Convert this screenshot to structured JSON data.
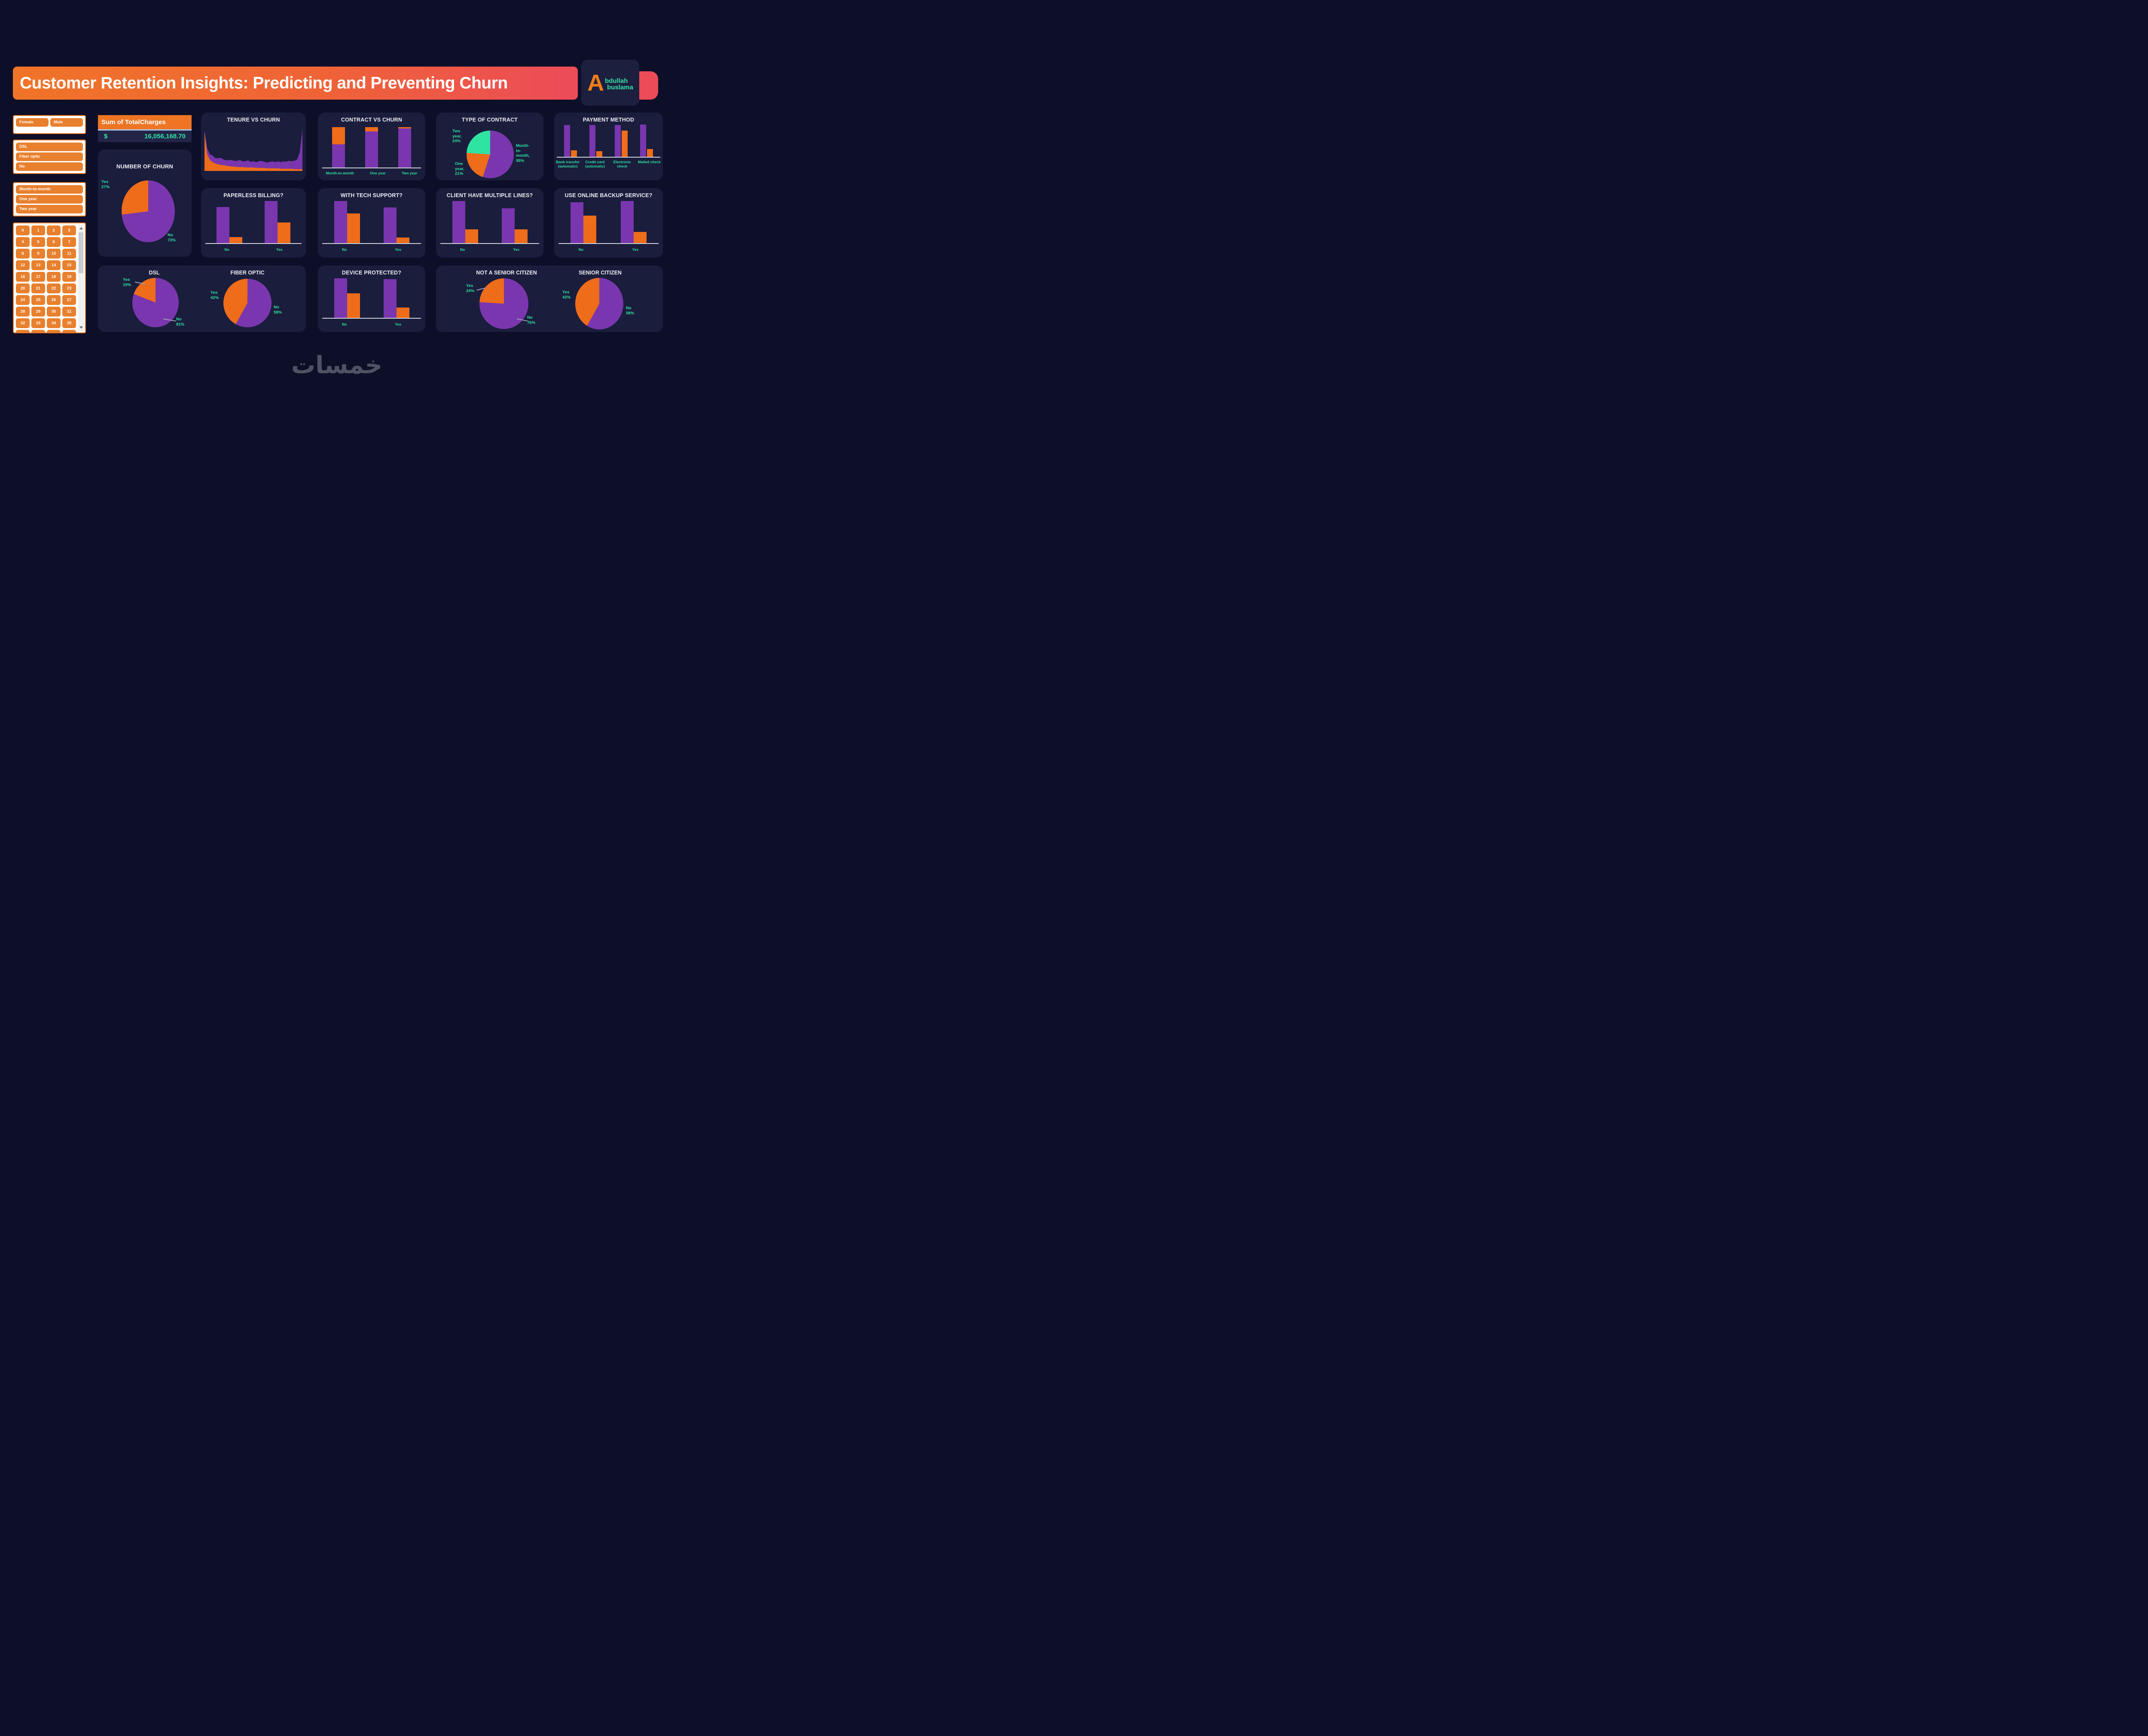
{
  "colors": {
    "background": "#0d0f28",
    "card": "#1a1d3c",
    "purple": "#7a36ae",
    "orange": "#ee6c1a",
    "teal": "#2fe3a3",
    "banner_start": "#f07428",
    "banner_end": "#ec4b58",
    "white": "#f2f2f2",
    "axis_gray": "#cfd2d8",
    "slicer_orange": "#e8802e",
    "divider_blue": "#a9c5e8"
  },
  "banner": {
    "title": "Customer Retention Insights: Predicting and Preventing Churn"
  },
  "logo": {
    "initial": "A",
    "line1": "bdullah",
    "line2": "buslama"
  },
  "slicers": {
    "gender": {
      "options": [
        "Female",
        "Male"
      ]
    },
    "internet": {
      "options": [
        "DSL",
        "Fiber optic",
        "No"
      ]
    },
    "contract": {
      "options": [
        "Month-to-month",
        "One year",
        "Two year"
      ]
    },
    "tenure": {
      "numbers": [
        "0",
        "1",
        "2",
        "3",
        "4",
        "5",
        "6",
        "7",
        "8",
        "9",
        "10",
        "11",
        "12",
        "13",
        "14",
        "15",
        "16",
        "17",
        "18",
        "19",
        "20",
        "21",
        "22",
        "23",
        "24",
        "25",
        "26",
        "27",
        "28",
        "29",
        "30",
        "31",
        "32",
        "33",
        "34",
        "35",
        "36",
        "37",
        "38",
        "39"
      ]
    }
  },
  "kpi": {
    "title": "Sum of TotalCharges",
    "currency_symbol": "$",
    "value": "16,056,168.70"
  },
  "watermark": {
    "text": "خمسات"
  },
  "charts": {
    "number_of_churn": {
      "type": "pie",
      "title": "NUMBER OF CHURN",
      "slices": [
        {
          "label": "No",
          "pct": 73,
          "pct_text": "73%",
          "color": "purple"
        },
        {
          "label": "Yes",
          "pct": 27,
          "pct_text": "27%",
          "color": "orange"
        }
      ]
    },
    "tenure_vs_churn": {
      "type": "area",
      "title": "TENURE VS CHURN",
      "x_label": "tenure",
      "x_range": [
        0,
        72
      ],
      "series": [
        {
          "name": "Yes",
          "color": "orange",
          "values": [
            88,
            38,
            25,
            20,
            17,
            15,
            14,
            13,
            12,
            11,
            10,
            10,
            9,
            9,
            9,
            8,
            8,
            8,
            8,
            7,
            7,
            7,
            7,
            6,
            6,
            6,
            6,
            6,
            5,
            5,
            5,
            5,
            5,
            4,
            4,
            4,
            4
          ]
        },
        {
          "name": "No",
          "color": "purple",
          "values": [
            6,
            14,
            13,
            15,
            12,
            14,
            16,
            13,
            12,
            14,
            15,
            13,
            14,
            16,
            13,
            14,
            16,
            13,
            14,
            13,
            15,
            16,
            14,
            13,
            15,
            16,
            14,
            16,
            15,
            17,
            16,
            18,
            17,
            19,
            22,
            38,
            92
          ]
        }
      ]
    },
    "contract_vs_churn": {
      "type": "stacked_bar",
      "title": "CONTRACT VS CHURN",
      "categories": [
        "Month-to-month",
        "One year",
        "Two year"
      ],
      "series": [
        {
          "name": "No",
          "color": "purple",
          "values": [
            57,
            89,
            97
          ]
        },
        {
          "name": "Yes",
          "color": "orange",
          "values": [
            43,
            11,
            3
          ]
        }
      ],
      "max": 100
    },
    "type_of_contract": {
      "type": "pie",
      "title": "TYPE OF CONTRACT",
      "slices": [
        {
          "label": "Month-to-month",
          "pct": 55,
          "color": "purple",
          "callout": "Month- to- month, 55%"
        },
        {
          "label": "One year",
          "pct": 21,
          "color": "orange",
          "callout": "One year, 21%"
        },
        {
          "label": "Two year",
          "pct": 24,
          "color": "teal",
          "callout": "Two year, 24%"
        }
      ]
    },
    "payment_method": {
      "type": "grouped_bar",
      "title": "PAYMENT METHOD",
      "categories": [
        "Bank transfer (automatic)",
        "Credit card (automatic)",
        "Electronic check",
        "Mailed check"
      ],
      "series": [
        {
          "name": "No",
          "color": "purple",
          "values": [
            99,
            99,
            99,
            100
          ]
        },
        {
          "name": "Yes",
          "color": "orange",
          "values": [
            20,
            18,
            82,
            24
          ]
        }
      ],
      "max": 100
    },
    "paperless_billing": {
      "type": "grouped_bar",
      "title": "PAPERLESS BILLING?",
      "categories": [
        "No",
        "Yes"
      ],
      "series": [
        {
          "name": "No",
          "color": "purple",
          "values": [
            86,
            100
          ]
        },
        {
          "name": "Yes",
          "color": "orange",
          "values": [
            14,
            49
          ]
        }
      ],
      "max": 100
    },
    "tech_support": {
      "type": "grouped_bar",
      "title": "WITH TECH SUPPORT?",
      "categories": [
        "No",
        "Yes"
      ],
      "series": [
        {
          "name": "No",
          "color": "purple",
          "values": [
            100,
            85
          ]
        },
        {
          "name": "Yes",
          "color": "orange",
          "values": [
            70,
            13
          ]
        }
      ],
      "max": 100
    },
    "multiple_lines": {
      "type": "grouped_bar",
      "title": "CLIENT HAVE MULTIPLE LINES?",
      "categories": [
        "No",
        "Yes"
      ],
      "series": [
        {
          "name": "No",
          "color": "purple",
          "values": [
            100,
            83
          ]
        },
        {
          "name": "Yes",
          "color": "orange",
          "values": [
            33,
            33
          ]
        }
      ],
      "max": 100
    },
    "online_backup": {
      "type": "grouped_bar",
      "title": "USE ONLINE BACKUP SERVICE?",
      "categories": [
        "No",
        "Yes"
      ],
      "series": [
        {
          "name": "No",
          "color": "purple",
          "values": [
            97,
            100
          ]
        },
        {
          "name": "Yes",
          "color": "orange",
          "values": [
            65,
            27
          ]
        }
      ],
      "max": 100
    },
    "dsl": {
      "type": "pie",
      "title": "DSL",
      "slices": [
        {
          "label": "No",
          "pct": 81,
          "pct_text": "81%",
          "color": "purple"
        },
        {
          "label": "Yes",
          "pct": 19,
          "pct_text": "19%",
          "color": "orange"
        }
      ]
    },
    "fiber_optic": {
      "type": "pie",
      "title": "FIBER OPTIC",
      "slices": [
        {
          "label": "No",
          "pct": 58,
          "pct_text": "58%",
          "color": "purple"
        },
        {
          "label": "Yes",
          "pct": 42,
          "pct_text": "42%",
          "color": "orange"
        }
      ]
    },
    "device_protected": {
      "type": "grouped_bar",
      "title": "DEVICE PROTECTED?",
      "categories": [
        "No",
        "Yes"
      ],
      "series": [
        {
          "name": "No",
          "color": "purple",
          "values": [
            100,
            98
          ]
        },
        {
          "name": "Yes",
          "color": "orange",
          "values": [
            62,
            26
          ]
        }
      ],
      "max": 100
    },
    "not_senior_citizen": {
      "type": "pie",
      "title": "NOT A SENIOR CITIZEN",
      "slices": [
        {
          "label": "No",
          "pct": 76,
          "pct_text": "76%",
          "color": "purple"
        },
        {
          "label": "Yes",
          "pct": 24,
          "pct_text": "24%",
          "color": "orange"
        }
      ]
    },
    "senior_citizen": {
      "type": "pie",
      "title": "SENIOR CITIZEN",
      "slices": [
        {
          "label": "No",
          "pct": 58,
          "pct_text": "58%",
          "color": "purple"
        },
        {
          "label": "Yes",
          "pct": 42,
          "pct_text": "42%",
          "color": "orange"
        }
      ]
    }
  }
}
